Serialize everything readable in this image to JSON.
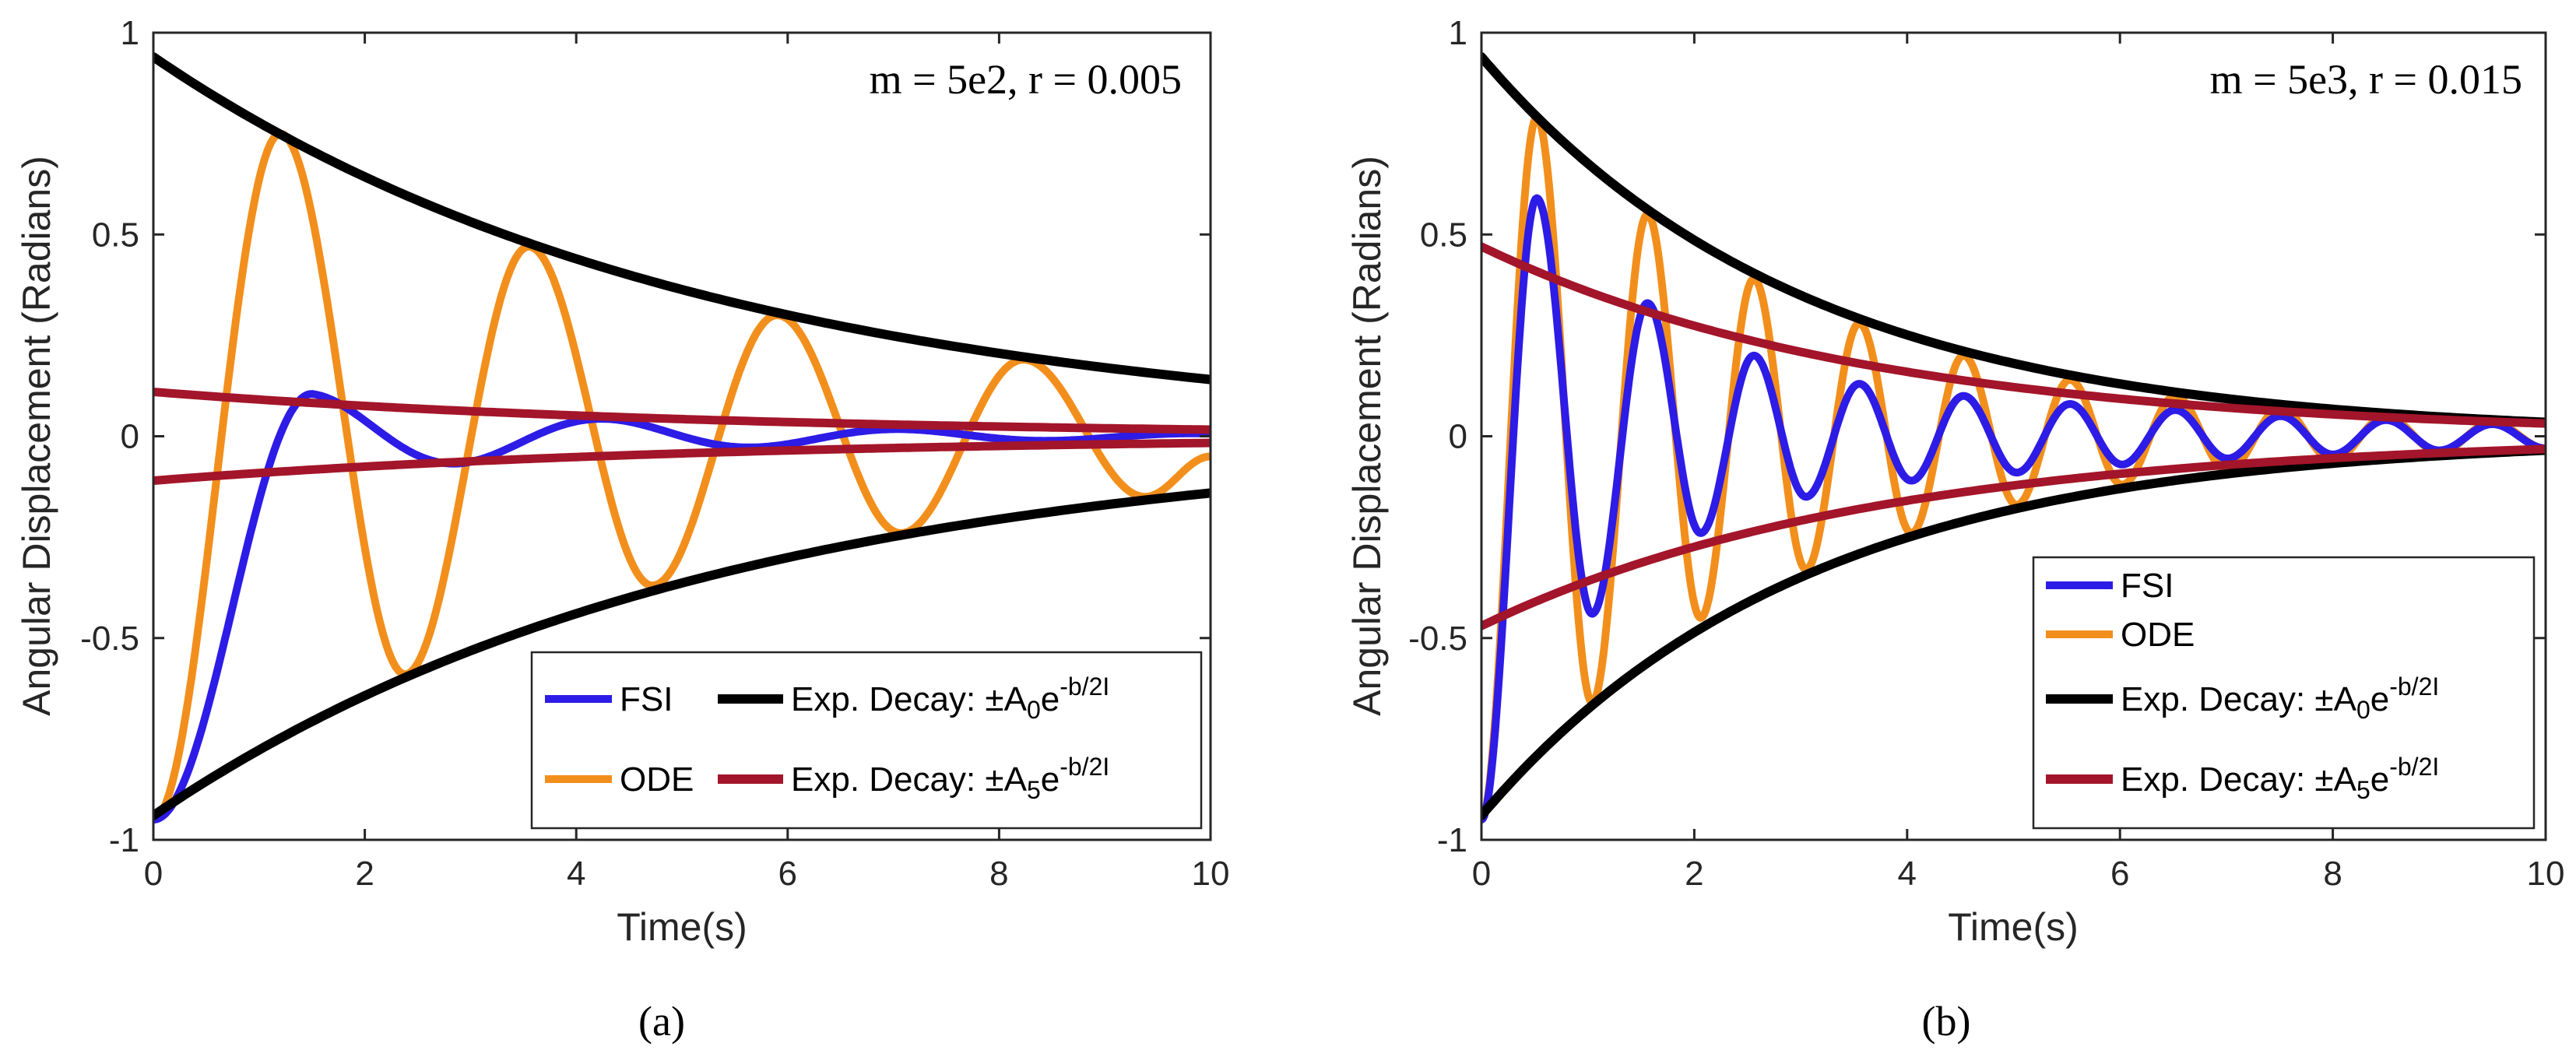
{
  "chart_data": [
    {
      "type": "line",
      "caption": "(a)",
      "annotation": "m = 5e2, r = 0.005",
      "xlabel": "Time(s)",
      "ylabel": "Angular Displacement (Radians)",
      "xlim": [
        0,
        10
      ],
      "ylim": [
        -1,
        1
      ],
      "xticks": [
        0,
        2,
        4,
        6,
        8,
        10
      ],
      "xtick_labels": [
        "0",
        "2",
        "4",
        "6",
        "8",
        "10"
      ],
      "yticks": [
        -1,
        -0.5,
        0,
        0.5,
        1
      ],
      "ytick_labels": [
        "-1",
        "-0.5",
        "0",
        "0.5",
        "1"
      ],
      "legend_position": "bottom-right",
      "legend_columns": 2,
      "series": [
        {
          "name": "FSI",
          "legend": "FSI",
          "color": "#2d1be6",
          "kind": "damped",
          "A0": -0.95,
          "peak": 0.105,
          "decay": 0.32,
          "period": 2.8,
          "peak_t": 1.5
        },
        {
          "name": "ODE",
          "legend": "ODE",
          "color": "#f28f1c",
          "kind": "oscillation",
          "points": [
            [
              0,
              -0.95
            ],
            [
              1.2,
              0.75
            ],
            [
              2.38,
              -0.59
            ],
            [
              3.55,
              0.47
            ],
            [
              4.72,
              -0.37
            ],
            [
              5.9,
              0.3
            ],
            [
              7.07,
              -0.24
            ],
            [
              8.23,
              0.19
            ],
            [
              9.38,
              -0.15
            ],
            [
              10,
              -0.05
            ]
          ]
        },
        {
          "name": "Exp. Decay A0",
          "legend": "Exp. Decay: ±A",
          "sub": "0",
          "base": "e",
          "sup": "-b/2I",
          "color": "#000000",
          "kind": "envelope",
          "A": 0.94,
          "rate": 0.19
        },
        {
          "name": "Exp. Decay A5",
          "legend": "Exp. Decay: ±A",
          "sub": "5",
          "base": "e",
          "sup": "-b/2I",
          "color": "#a3152a",
          "kind": "envelope",
          "A": 0.11,
          "rate": 0.19
        }
      ]
    },
    {
      "type": "line",
      "caption": "(b)",
      "annotation": "m = 5e3, r = 0.015",
      "xlabel": "Time(s)",
      "ylabel": "Angular Displacement (Radians)",
      "xlim": [
        0,
        10
      ],
      "ylim": [
        -1,
        1
      ],
      "xticks": [
        0,
        2,
        4,
        6,
        8,
        10
      ],
      "xtick_labels": [
        "0",
        "2",
        "4",
        "6",
        "8",
        "10"
      ],
      "yticks": [
        -1,
        -0.5,
        0,
        0.5,
        1
      ],
      "ytick_labels": [
        "-1",
        "-0.5",
        "0",
        "0.5",
        "1"
      ],
      "legend_position": "bottom-right",
      "legend_columns": 1,
      "series": [
        {
          "name": "FSI",
          "legend": "FSI",
          "color": "#2d1be6",
          "kind": "oscillation",
          "points": [
            [
              0,
              -0.95
            ],
            [
              0.52,
              0.59
            ],
            [
              1.04,
              -0.44
            ],
            [
              1.56,
              0.33
            ],
            [
              2.06,
              -0.24
            ],
            [
              2.56,
              0.2
            ],
            [
              3.05,
              -0.15
            ],
            [
              3.55,
              0.13
            ],
            [
              4.04,
              -0.11
            ],
            [
              4.53,
              0.1
            ],
            [
              5.03,
              -0.09
            ],
            [
              5.53,
              0.08
            ],
            [
              6.02,
              -0.07
            ],
            [
              6.52,
              0.065
            ],
            [
              7.01,
              -0.055
            ],
            [
              7.51,
              0.05
            ],
            [
              8.0,
              -0.045
            ],
            [
              8.5,
              0.04
            ],
            [
              9.0,
              -0.035
            ],
            [
              9.5,
              0.03
            ],
            [
              10,
              -0.03
            ]
          ]
        },
        {
          "name": "ODE",
          "legend": "ODE",
          "color": "#f28f1c",
          "kind": "oscillation",
          "points": [
            [
              0,
              -0.95
            ],
            [
              0.52,
              0.79
            ],
            [
              1.04,
              -0.66
            ],
            [
              1.56,
              0.55
            ],
            [
              2.06,
              -0.45
            ],
            [
              2.56,
              0.39
            ],
            [
              3.05,
              -0.33
            ],
            [
              3.55,
              0.28
            ],
            [
              4.04,
              -0.24
            ],
            [
              4.53,
              0.2
            ],
            [
              5.03,
              -0.17
            ],
            [
              5.53,
              0.14
            ],
            [
              6.02,
              -0.12
            ],
            [
              6.52,
              0.1
            ],
            [
              7.01,
              -0.085
            ],
            [
              7.51,
              0.07
            ],
            [
              8.0,
              -0.06
            ],
            [
              8.5,
              0.05
            ],
            [
              9.0,
              -0.04
            ],
            [
              9.5,
              0.035
            ],
            [
              10,
              -0.03
            ]
          ]
        },
        {
          "name": "Exp. Decay A0",
          "legend": "Exp. Decay: ±A",
          "sub": "0",
          "base": "e",
          "sup": "-b/2I",
          "color": "#000000",
          "kind": "envelope",
          "A": 0.94,
          "rate": 0.33
        },
        {
          "name": "Exp. Decay A5",
          "legend": "Exp. Decay: ±A",
          "sub": "5",
          "base": "e",
          "sup": "-b/2I",
          "color": "#a3152a",
          "kind": "envelope",
          "A": 0.47,
          "rate": 0.27
        }
      ]
    }
  ]
}
